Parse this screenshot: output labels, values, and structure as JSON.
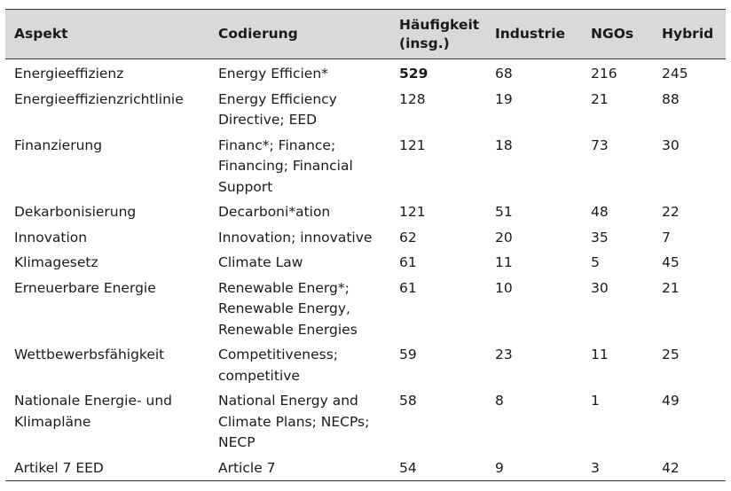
{
  "table": {
    "headers": [
      "Aspekt",
      "Codierung",
      "Häufigkeit (insg.)",
      "Industrie",
      "NGOs",
      "Hybrid"
    ],
    "rows": [
      {
        "aspekt": "Energieeffizienz",
        "codierung": "Energy Efficien*",
        "haeufigkeit": "529",
        "industrie": "68",
        "ngos": "216",
        "hybrid": "245",
        "bold_count": true
      },
      {
        "aspekt": "Energieeffizienzrichtlinie",
        "codierung": "Energy Efficiency Directive; EED",
        "haeufigkeit": "128",
        "industrie": "19",
        "ngos": "21",
        "hybrid": "88"
      },
      {
        "aspekt": "Finanzierung",
        "codierung": "Financ*; Finance; Financing; Financial Support",
        "haeufigkeit": "121",
        "industrie": "18",
        "ngos": "73",
        "hybrid": "30"
      },
      {
        "aspekt": "Dekarbonisierung",
        "codierung": "Decarboni*ation",
        "haeufigkeit": "121",
        "industrie": "51",
        "ngos": "48",
        "hybrid": "22"
      },
      {
        "aspekt": "Innovation",
        "codierung": "Innovation; innovative",
        "haeufigkeit": "62",
        "industrie": "20",
        "ngos": "35",
        "hybrid": "7"
      },
      {
        "aspekt": "Klimagesetz",
        "codierung": "Climate Law",
        "haeufigkeit": "61",
        "industrie": "11",
        "ngos": "5",
        "hybrid": "45"
      },
      {
        "aspekt": "Erneuerbare Energie",
        "codierung": "Renewable Energ*; Renewable Energy, Renewable Energies",
        "haeufigkeit": "61",
        "industrie": "10",
        "ngos": "30",
        "hybrid": "21"
      },
      {
        "aspekt": "Wettbewerbsfähigkeit",
        "codierung": "Competitiveness; competitive",
        "haeufigkeit": "59",
        "industrie": "23",
        "ngos": "11",
        "hybrid": "25"
      },
      {
        "aspekt": "Nationale Energie- und Klimapläne",
        "codierung": "National Energy and Climate Plans; NECPs; NECP",
        "haeufigkeit": "58",
        "industrie": "8",
        "ngos": "1",
        "hybrid": "49"
      },
      {
        "aspekt": "Artikel 7 EED",
        "codierung": "Article 7",
        "haeufigkeit": "54",
        "industrie": "9",
        "ngos": "3",
        "hybrid": "42"
      }
    ]
  }
}
